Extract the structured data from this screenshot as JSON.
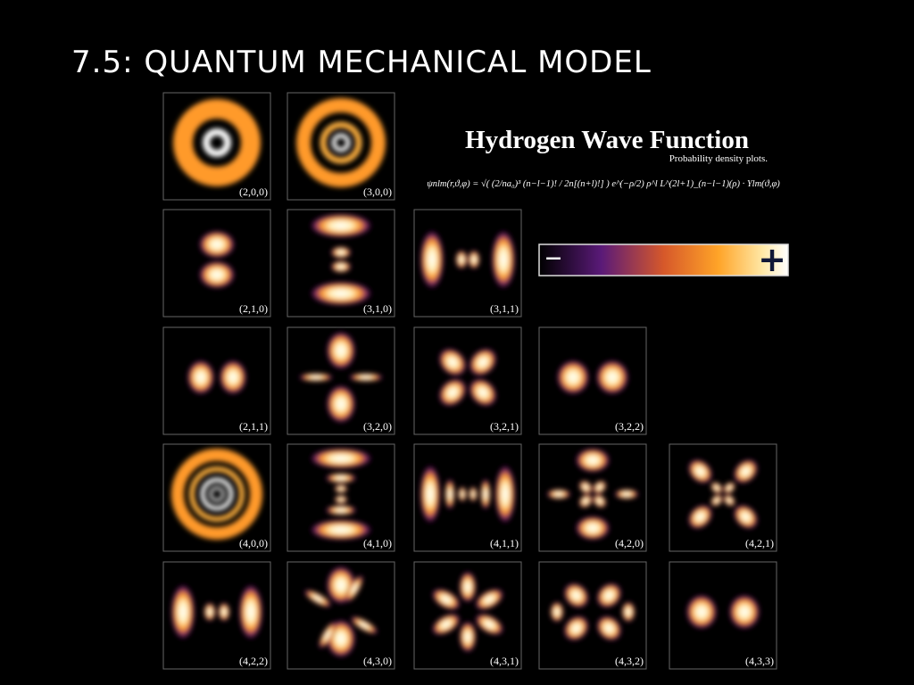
{
  "title": "7.5: QUANTUM MECHANICAL MODEL",
  "figure": {
    "heading": "Hydrogen Wave Function",
    "subheading": "Probability density plots.",
    "formula": "ψnlm(r,ϑ,φ) = √( (2/na₀)³ (n−l−1)! / 2n[(n+l)!] ) e^(−ρ/2) ρ^l L^(2l+1)_(n−l−1)(ρ) · Ylm(ϑ,φ)",
    "scale": {
      "minus": "−",
      "plus": "+"
    },
    "orbitals": [
      [
        "(2,0,0)",
        "(3,0,0)"
      ],
      [
        "(2,1,0)",
        "(3,1,0)",
        "(3,1,1)"
      ],
      [
        "(2,1,1)",
        "(3,2,0)",
        "(3,2,1)",
        "(3,2,2)"
      ],
      [
        "(4,0,0)",
        "(4,1,0)",
        "(4,1,1)",
        "(4,2,0)",
        "(4,2,1)"
      ],
      [
        "(4,2,2)",
        "(4,3,0)",
        "(4,3,1)",
        "(4,3,2)",
        "(4,3,3)"
      ]
    ]
  }
}
